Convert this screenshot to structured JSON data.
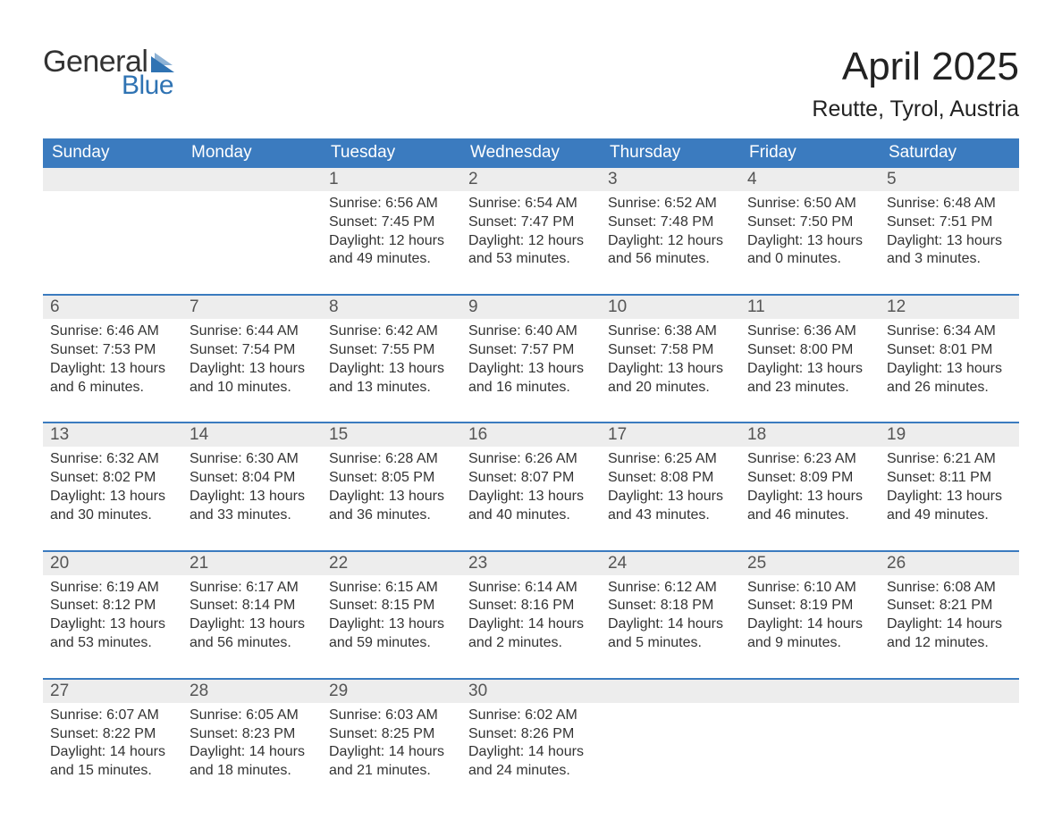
{
  "logo": {
    "word1": "General",
    "word2": "Blue"
  },
  "title": "April 2025",
  "location": "Reutte, Tyrol, Austria",
  "colors": {
    "header_bg": "#3b7bbf",
    "header_text": "#ffffff",
    "daynum_bg": "#ededed",
    "text": "#333333",
    "logo_blue": "#2f73b3",
    "week_border": "#3b7bbf"
  },
  "weekdays": [
    "Sunday",
    "Monday",
    "Tuesday",
    "Wednesday",
    "Thursday",
    "Friday",
    "Saturday"
  ],
  "calendar": {
    "type": "table",
    "weeks": [
      [
        {
          "n": "",
          "sunrise": "",
          "sunset": "",
          "dlh": "",
          "dlm": ""
        },
        {
          "n": "",
          "sunrise": "",
          "sunset": "",
          "dlh": "",
          "dlm": ""
        },
        {
          "n": "1",
          "sunrise": "6:56 AM",
          "sunset": "7:45 PM",
          "dlh": "12",
          "dlm": "49"
        },
        {
          "n": "2",
          "sunrise": "6:54 AM",
          "sunset": "7:47 PM",
          "dlh": "12",
          "dlm": "53"
        },
        {
          "n": "3",
          "sunrise": "6:52 AM",
          "sunset": "7:48 PM",
          "dlh": "12",
          "dlm": "56"
        },
        {
          "n": "4",
          "sunrise": "6:50 AM",
          "sunset": "7:50 PM",
          "dlh": "13",
          "dlm": "0"
        },
        {
          "n": "5",
          "sunrise": "6:48 AM",
          "sunset": "7:51 PM",
          "dlh": "13",
          "dlm": "3"
        }
      ],
      [
        {
          "n": "6",
          "sunrise": "6:46 AM",
          "sunset": "7:53 PM",
          "dlh": "13",
          "dlm": "6"
        },
        {
          "n": "7",
          "sunrise": "6:44 AM",
          "sunset": "7:54 PM",
          "dlh": "13",
          "dlm": "10"
        },
        {
          "n": "8",
          "sunrise": "6:42 AM",
          "sunset": "7:55 PM",
          "dlh": "13",
          "dlm": "13"
        },
        {
          "n": "9",
          "sunrise": "6:40 AM",
          "sunset": "7:57 PM",
          "dlh": "13",
          "dlm": "16"
        },
        {
          "n": "10",
          "sunrise": "6:38 AM",
          "sunset": "7:58 PM",
          "dlh": "13",
          "dlm": "20"
        },
        {
          "n": "11",
          "sunrise": "6:36 AM",
          "sunset": "8:00 PM",
          "dlh": "13",
          "dlm": "23"
        },
        {
          "n": "12",
          "sunrise": "6:34 AM",
          "sunset": "8:01 PM",
          "dlh": "13",
          "dlm": "26"
        }
      ],
      [
        {
          "n": "13",
          "sunrise": "6:32 AM",
          "sunset": "8:02 PM",
          "dlh": "13",
          "dlm": "30"
        },
        {
          "n": "14",
          "sunrise": "6:30 AM",
          "sunset": "8:04 PM",
          "dlh": "13",
          "dlm": "33"
        },
        {
          "n": "15",
          "sunrise": "6:28 AM",
          "sunset": "8:05 PM",
          "dlh": "13",
          "dlm": "36"
        },
        {
          "n": "16",
          "sunrise": "6:26 AM",
          "sunset": "8:07 PM",
          "dlh": "13",
          "dlm": "40"
        },
        {
          "n": "17",
          "sunrise": "6:25 AM",
          "sunset": "8:08 PM",
          "dlh": "13",
          "dlm": "43"
        },
        {
          "n": "18",
          "sunrise": "6:23 AM",
          "sunset": "8:09 PM",
          "dlh": "13",
          "dlm": "46"
        },
        {
          "n": "19",
          "sunrise": "6:21 AM",
          "sunset": "8:11 PM",
          "dlh": "13",
          "dlm": "49"
        }
      ],
      [
        {
          "n": "20",
          "sunrise": "6:19 AM",
          "sunset": "8:12 PM",
          "dlh": "13",
          "dlm": "53"
        },
        {
          "n": "21",
          "sunrise": "6:17 AM",
          "sunset": "8:14 PM",
          "dlh": "13",
          "dlm": "56"
        },
        {
          "n": "22",
          "sunrise": "6:15 AM",
          "sunset": "8:15 PM",
          "dlh": "13",
          "dlm": "59"
        },
        {
          "n": "23",
          "sunrise": "6:14 AM",
          "sunset": "8:16 PM",
          "dlh": "14",
          "dlm": "2"
        },
        {
          "n": "24",
          "sunrise": "6:12 AM",
          "sunset": "8:18 PM",
          "dlh": "14",
          "dlm": "5"
        },
        {
          "n": "25",
          "sunrise": "6:10 AM",
          "sunset": "8:19 PM",
          "dlh": "14",
          "dlm": "9"
        },
        {
          "n": "26",
          "sunrise": "6:08 AM",
          "sunset": "8:21 PM",
          "dlh": "14",
          "dlm": "12"
        }
      ],
      [
        {
          "n": "27",
          "sunrise": "6:07 AM",
          "sunset": "8:22 PM",
          "dlh": "14",
          "dlm": "15"
        },
        {
          "n": "28",
          "sunrise": "6:05 AM",
          "sunset": "8:23 PM",
          "dlh": "14",
          "dlm": "18"
        },
        {
          "n": "29",
          "sunrise": "6:03 AM",
          "sunset": "8:25 PM",
          "dlh": "14",
          "dlm": "21"
        },
        {
          "n": "30",
          "sunrise": "6:02 AM",
          "sunset": "8:26 PM",
          "dlh": "14",
          "dlm": "24"
        },
        {
          "n": "",
          "sunrise": "",
          "sunset": "",
          "dlh": "",
          "dlm": ""
        },
        {
          "n": "",
          "sunrise": "",
          "sunset": "",
          "dlh": "",
          "dlm": ""
        },
        {
          "n": "",
          "sunrise": "",
          "sunset": "",
          "dlh": "",
          "dlm": ""
        }
      ]
    ]
  },
  "labels": {
    "sunrise_prefix": "Sunrise: ",
    "sunset_prefix": "Sunset: ",
    "daylight_prefix": "Daylight: ",
    "hours_word": " hours",
    "and_word": "and ",
    "minutes_word": " minutes."
  }
}
